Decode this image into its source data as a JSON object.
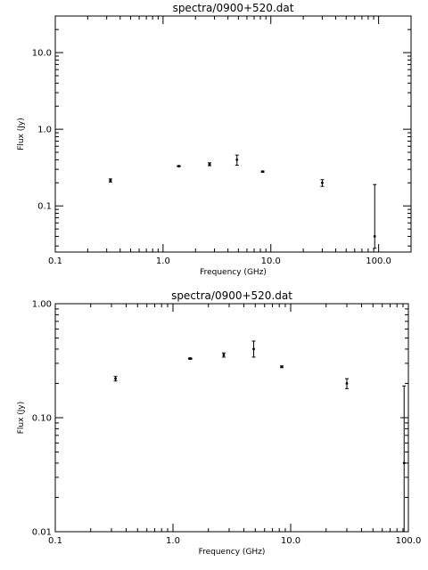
{
  "chart_data": [
    {
      "type": "scatter",
      "title": "spectra/0900+520.dat",
      "xlabel": "Frequency (GHz)",
      "ylabel": "Flux (Jy)",
      "xscale": "log",
      "yscale": "log",
      "xlim": [
        0.1,
        200
      ],
      "ylim": [
        0.025,
        30
      ],
      "xticks": [
        {
          "value": 0.1,
          "label": "0.1"
        },
        {
          "value": 1,
          "label": "1.0"
        },
        {
          "value": 10,
          "label": "10.0"
        },
        {
          "value": 100,
          "label": "100.0"
        }
      ],
      "yticks": [
        {
          "value": 0.1,
          "label": "0.1"
        },
        {
          "value": 1,
          "label": "1.0"
        },
        {
          "value": 10,
          "label": "10.0"
        }
      ],
      "grid": false,
      "points": [
        {
          "x": 0.325,
          "y": 0.215,
          "ylo": 0.205,
          "yhi": 0.225,
          "xlo": 0.318,
          "xhi": 0.332
        },
        {
          "x": 1.4,
          "y": 0.33,
          "ylo": 0.325,
          "yhi": 0.335,
          "xlo": 1.34,
          "xhi": 1.46
        },
        {
          "x": 2.7,
          "y": 0.35,
          "ylo": 0.335,
          "yhi": 0.365
        },
        {
          "x": 4.85,
          "y": 0.4,
          "ylo": 0.34,
          "yhi": 0.46
        },
        {
          "x": 8.4,
          "y": 0.28,
          "ylo": 0.275,
          "yhi": 0.285
        },
        {
          "x": 30,
          "y": 0.2,
          "ylo": 0.18,
          "yhi": 0.22
        },
        {
          "x": 92,
          "y": 0.04,
          "ylo": 0.028,
          "yhi": 0.19
        }
      ]
    },
    {
      "type": "scatter",
      "title": "spectra/0900+520.dat",
      "xlabel": "Frequency (GHz)",
      "ylabel": "Flux (Jy)",
      "xscale": "log",
      "yscale": "log",
      "xlim": [
        0.1,
        100
      ],
      "ylim": [
        0.01,
        1
      ],
      "xticks": [
        {
          "value": 0.1,
          "label": "0.1"
        },
        {
          "value": 1,
          "label": "1.0"
        },
        {
          "value": 10,
          "label": "10.0"
        },
        {
          "value": 100,
          "label": "100.0"
        }
      ],
      "yticks": [
        {
          "value": 0.01,
          "label": "0.01"
        },
        {
          "value": 0.1,
          "label": "0.10"
        },
        {
          "value": 1,
          "label": "1.00"
        }
      ],
      "grid": false,
      "points": [
        {
          "x": 0.325,
          "y": 0.22,
          "ylo": 0.21,
          "yhi": 0.23,
          "xlo": 0.318,
          "xhi": 0.332
        },
        {
          "x": 1.4,
          "y": 0.33,
          "ylo": 0.325,
          "yhi": 0.335,
          "xlo": 1.34,
          "xhi": 1.46
        },
        {
          "x": 2.7,
          "y": 0.355,
          "ylo": 0.34,
          "yhi": 0.37
        },
        {
          "x": 4.85,
          "y": 0.4,
          "ylo": 0.34,
          "yhi": 0.47
        },
        {
          "x": 8.4,
          "y": 0.28,
          "ylo": 0.275,
          "yhi": 0.285
        },
        {
          "x": 30,
          "y": 0.2,
          "ylo": 0.18,
          "yhi": 0.22
        },
        {
          "x": 92,
          "y": 0.04,
          "ylo": 0.01,
          "yhi": 0.19
        }
      ]
    }
  ]
}
